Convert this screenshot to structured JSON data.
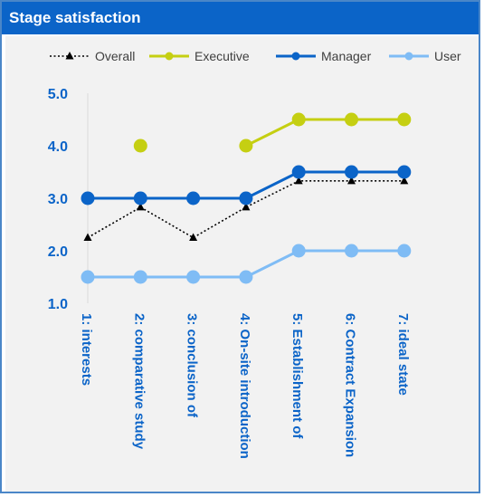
{
  "title": "Stage satisfaction",
  "chart_data": {
    "type": "line",
    "categories": [
      "1: interests",
      "2: comparative study",
      "3: conclusion of",
      "4: On-site introduction",
      "5: Establishment of",
      "6: Contract Expansion",
      "7: ideal state"
    ],
    "ylim": [
      1.0,
      5.0
    ],
    "yticks": [
      "1.0",
      "2.0",
      "3.0",
      "4.0",
      "5.0"
    ],
    "grid": false,
    "legend_position": "top",
    "series": [
      {
        "name": "Overall",
        "color": "#000000",
        "style": "dotted",
        "marker": "triangle",
        "values": [
          2.25,
          2.83,
          2.25,
          2.83,
          3.33,
          3.33,
          3.33
        ]
      },
      {
        "name": "Executive",
        "color": "#c5cf12",
        "style": "solid",
        "marker": "circle",
        "values": [
          null,
          4.0,
          null,
          4.0,
          4.5,
          4.5,
          4.5
        ]
      },
      {
        "name": "Manager",
        "color": "#0b64c8",
        "style": "solid",
        "marker": "circle",
        "values": [
          3.0,
          3.0,
          3.0,
          3.0,
          3.5,
          3.5,
          3.5
        ]
      },
      {
        "name": "User",
        "color": "#7fbcf5",
        "style": "solid",
        "marker": "circle",
        "values": [
          1.5,
          1.5,
          1.5,
          1.5,
          2.0,
          2.0,
          2.0
        ]
      }
    ]
  }
}
